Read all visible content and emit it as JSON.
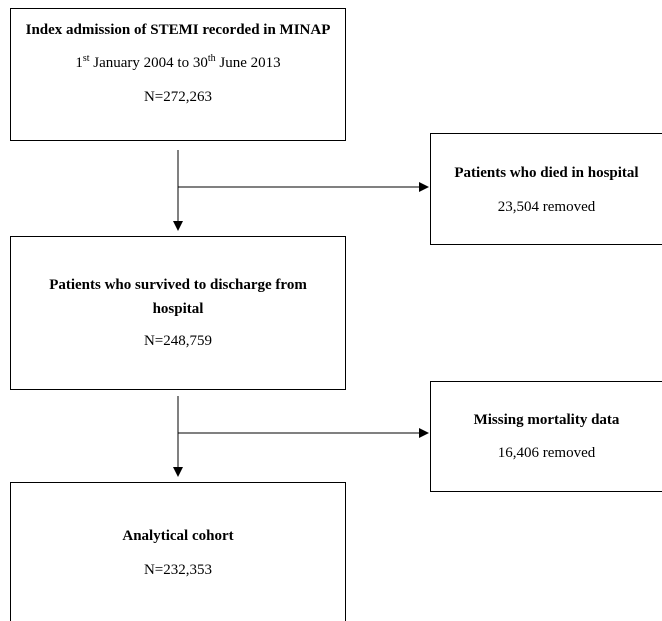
{
  "nodes": [
    {
      "title": "Index admission of STEMI recorded in MINAP",
      "date": [
        "1",
        "st",
        " January 2004 to 30",
        "th",
        " June 2013"
      ],
      "count": "N=272,263"
    },
    {
      "title": "Patients who died in hospital",
      "note": "23,504 removed"
    },
    {
      "title": "Patients who survived to discharge from hospital",
      "count": "N=248,759"
    },
    {
      "title": "Missing mortality data",
      "note": "16,406 removed"
    },
    {
      "title": "Analytical cohort",
      "count": "N=232,353"
    }
  ]
}
